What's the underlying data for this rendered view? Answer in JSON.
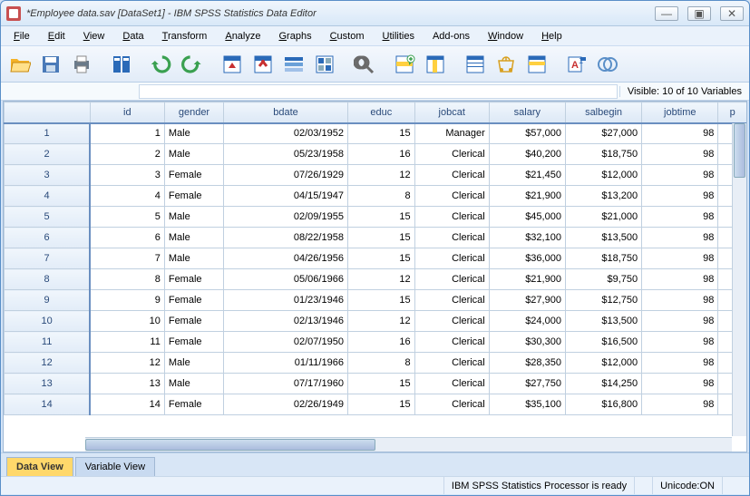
{
  "window": {
    "title": "*Employee data.sav [DataSet1] - IBM SPSS Statistics Data Editor",
    "minimize": "—",
    "maximize": "▣",
    "close": "✕"
  },
  "menu": [
    {
      "label": "File",
      "u": "F"
    },
    {
      "label": "Edit",
      "u": "E"
    },
    {
      "label": "View",
      "u": "V"
    },
    {
      "label": "Data",
      "u": "D"
    },
    {
      "label": "Transform",
      "u": "T"
    },
    {
      "label": "Analyze",
      "u": "A"
    },
    {
      "label": "Graphs",
      "u": "G"
    },
    {
      "label": "Custom",
      "u": "C"
    },
    {
      "label": "Utilities",
      "u": "U"
    },
    {
      "label": "Add-ons",
      "u": ""
    },
    {
      "label": "Window",
      "u": "W"
    },
    {
      "label": "Help",
      "u": "H"
    }
  ],
  "toolbar_icons": [
    {
      "name": "open-icon",
      "color": "#f5b328"
    },
    {
      "name": "save-icon",
      "color": "#4a7ab8"
    },
    {
      "name": "print-icon",
      "color": "#6a7a8a"
    },
    {
      "name": "sep"
    },
    {
      "name": "recall-icon",
      "color": "#2a6ab8"
    },
    {
      "name": "sep"
    },
    {
      "name": "undo-icon",
      "color": "#3aa050"
    },
    {
      "name": "redo-icon",
      "color": "#3aa050"
    },
    {
      "name": "sep"
    },
    {
      "name": "goto-case-icon",
      "color": "#2a6ab8"
    },
    {
      "name": "goto-var-icon",
      "color": "#c83030"
    },
    {
      "name": "variables-icon",
      "color": "#2a6ab8"
    },
    {
      "name": "run-icon",
      "color": "#2a6ab8"
    },
    {
      "name": "sep"
    },
    {
      "name": "find-icon",
      "color": "#6a6a6a"
    },
    {
      "name": "sep"
    },
    {
      "name": "insert-case-icon",
      "color": "#3aa050"
    },
    {
      "name": "insert-var-icon",
      "color": "#2a6ab8"
    },
    {
      "name": "sep"
    },
    {
      "name": "split-icon",
      "color": "#2a6ab8"
    },
    {
      "name": "weight-icon",
      "color": "#d8a020"
    },
    {
      "name": "select-icon",
      "color": "#2a6ab8"
    },
    {
      "name": "sep"
    },
    {
      "name": "value-labels-icon",
      "color": "#c83030"
    },
    {
      "name": "use-sets-icon",
      "color": "#5a8fc8"
    }
  ],
  "visible_text": "Visible: 10 of 10 Variables",
  "columns": [
    "id",
    "gender",
    "bdate",
    "educ",
    "jobcat",
    "salary",
    "salbegin",
    "jobtime",
    "p"
  ],
  "rows": [
    {
      "n": "1",
      "id": "1",
      "gender": "Male",
      "bdate": "02/03/1952",
      "educ": "15",
      "jobcat": "Manager",
      "salary": "$57,000",
      "salbegin": "$27,000",
      "jobtime": "98"
    },
    {
      "n": "2",
      "id": "2",
      "gender": "Male",
      "bdate": "05/23/1958",
      "educ": "16",
      "jobcat": "Clerical",
      "salary": "$40,200",
      "salbegin": "$18,750",
      "jobtime": "98"
    },
    {
      "n": "3",
      "id": "3",
      "gender": "Female",
      "bdate": "07/26/1929",
      "educ": "12",
      "jobcat": "Clerical",
      "salary": "$21,450",
      "salbegin": "$12,000",
      "jobtime": "98"
    },
    {
      "n": "4",
      "id": "4",
      "gender": "Female",
      "bdate": "04/15/1947",
      "educ": "8",
      "jobcat": "Clerical",
      "salary": "$21,900",
      "salbegin": "$13,200",
      "jobtime": "98"
    },
    {
      "n": "5",
      "id": "5",
      "gender": "Male",
      "bdate": "02/09/1955",
      "educ": "15",
      "jobcat": "Clerical",
      "salary": "$45,000",
      "salbegin": "$21,000",
      "jobtime": "98"
    },
    {
      "n": "6",
      "id": "6",
      "gender": "Male",
      "bdate": "08/22/1958",
      "educ": "15",
      "jobcat": "Clerical",
      "salary": "$32,100",
      "salbegin": "$13,500",
      "jobtime": "98"
    },
    {
      "n": "7",
      "id": "7",
      "gender": "Male",
      "bdate": "04/26/1956",
      "educ": "15",
      "jobcat": "Clerical",
      "salary": "$36,000",
      "salbegin": "$18,750",
      "jobtime": "98"
    },
    {
      "n": "8",
      "id": "8",
      "gender": "Female",
      "bdate": "05/06/1966",
      "educ": "12",
      "jobcat": "Clerical",
      "salary": "$21,900",
      "salbegin": "$9,750",
      "jobtime": "98"
    },
    {
      "n": "9",
      "id": "9",
      "gender": "Female",
      "bdate": "01/23/1946",
      "educ": "15",
      "jobcat": "Clerical",
      "salary": "$27,900",
      "salbegin": "$12,750",
      "jobtime": "98"
    },
    {
      "n": "10",
      "id": "10",
      "gender": "Female",
      "bdate": "02/13/1946",
      "educ": "12",
      "jobcat": "Clerical",
      "salary": "$24,000",
      "salbegin": "$13,500",
      "jobtime": "98"
    },
    {
      "n": "11",
      "id": "11",
      "gender": "Female",
      "bdate": "02/07/1950",
      "educ": "16",
      "jobcat": "Clerical",
      "salary": "$30,300",
      "salbegin": "$16,500",
      "jobtime": "98"
    },
    {
      "n": "12",
      "id": "12",
      "gender": "Male",
      "bdate": "01/11/1966",
      "educ": "8",
      "jobcat": "Clerical",
      "salary": "$28,350",
      "salbegin": "$12,000",
      "jobtime": "98"
    },
    {
      "n": "13",
      "id": "13",
      "gender": "Male",
      "bdate": "07/17/1960",
      "educ": "15",
      "jobcat": "Clerical",
      "salary": "$27,750",
      "salbegin": "$14,250",
      "jobtime": "98"
    },
    {
      "n": "14",
      "id": "14",
      "gender": "Female",
      "bdate": "02/26/1949",
      "educ": "15",
      "jobcat": "Clerical",
      "salary": "$35,100",
      "salbegin": "$16,800",
      "jobtime": "98"
    }
  ],
  "tabs": {
    "data": "Data View",
    "variable": "Variable View"
  },
  "status": {
    "processor": "IBM SPSS Statistics Processor is ready",
    "unicode": "Unicode:ON"
  }
}
